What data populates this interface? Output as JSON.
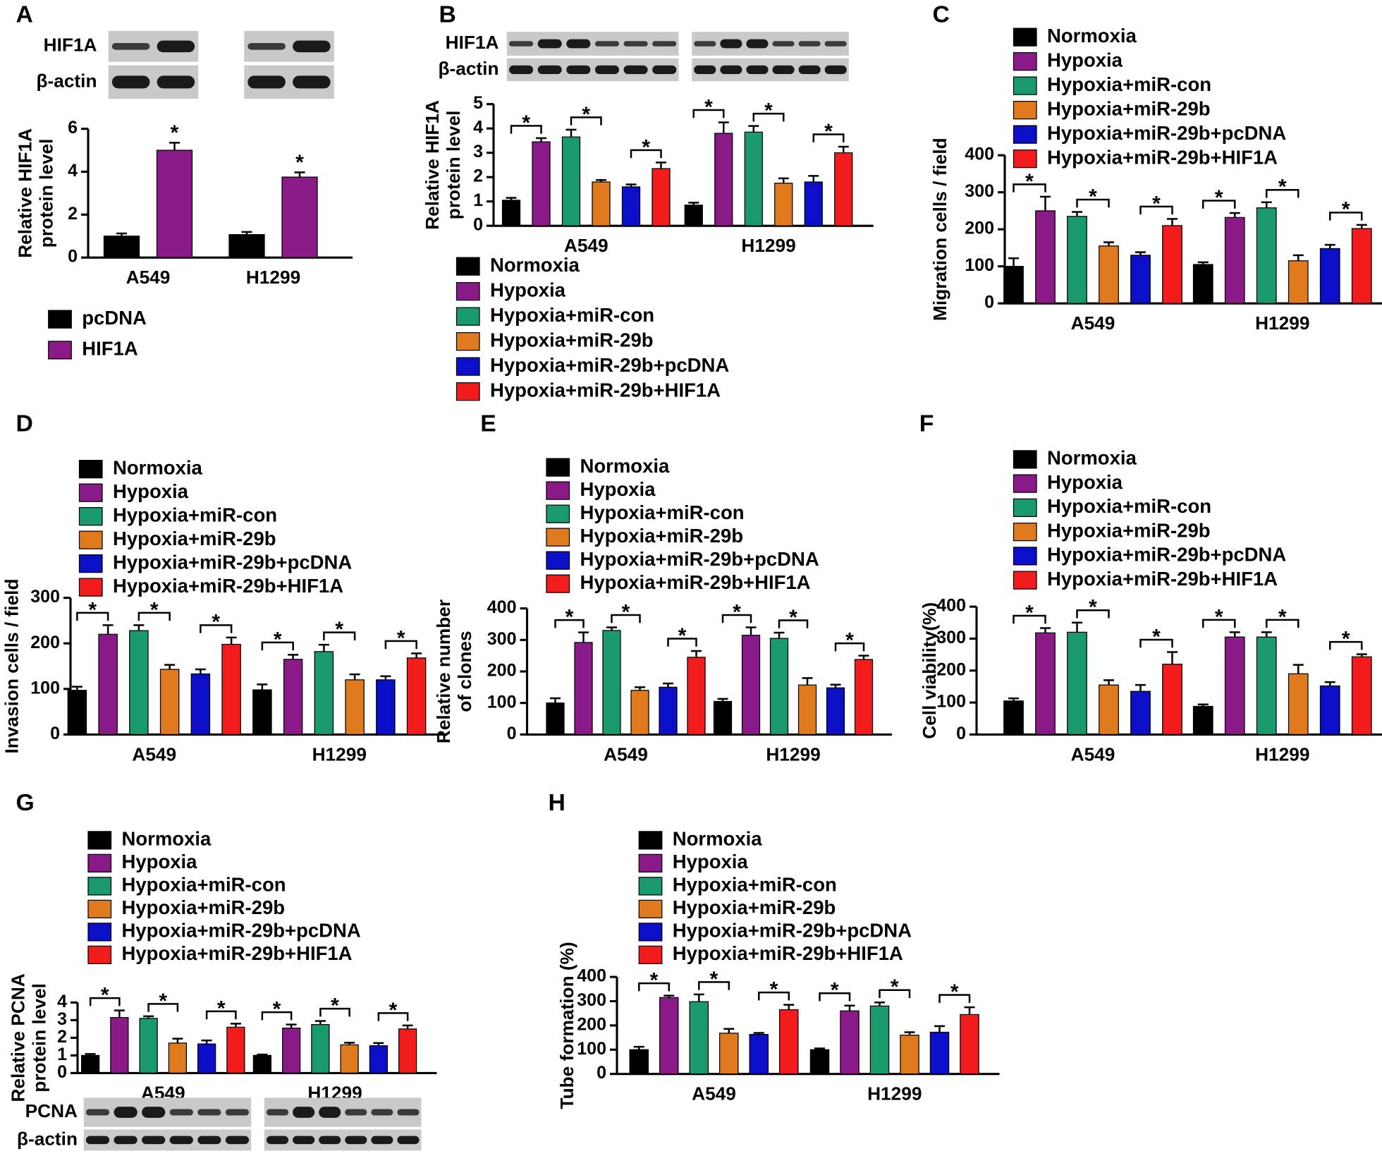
{
  "chart_data": [
    {
      "type": "bar",
      "panel": "A",
      "ylabel": [
        "Relative HIF1A",
        "protein level"
      ],
      "categories": [
        "A549",
        "H1299"
      ],
      "ylim": [
        0,
        6
      ],
      "yticks": [
        0,
        2,
        4,
        6
      ],
      "brackets": false,
      "blot": {
        "labels": [
          "HIF1A",
          "β-actin"
        ],
        "lanes": 2
      },
      "series": [
        {
          "name": "pcDNA",
          "color": "#000000",
          "values": [
            1.0,
            1.07
          ],
          "errors": [
            0.12,
            0.12
          ]
        },
        {
          "name": "HIF1A",
          "color": "#8b1a89",
          "values": [
            5.0,
            3.75
          ],
          "errors": [
            0.35,
            0.22
          ],
          "significance": [
            "*",
            "*"
          ]
        }
      ]
    },
    {
      "type": "bar",
      "panel": "B",
      "ylabel": [
        "Relative HIF1A",
        "protein level"
      ],
      "categories": [
        "A549",
        "H1299"
      ],
      "ylim": [
        0,
        5
      ],
      "yticks": [
        0,
        1,
        2,
        3,
        4,
        5
      ],
      "brackets": true,
      "blot": {
        "labels": [
          "HIF1A",
          "β-actin"
        ],
        "lanes": 6
      },
      "series": [
        {
          "name": "Normoxia",
          "color": "#000000",
          "values": [
            1.05,
            0.85
          ],
          "errors": [
            0.1,
            0.1
          ]
        },
        {
          "name": "Hypoxia",
          "color": "#8b1a89",
          "values": [
            3.45,
            3.8
          ],
          "errors": [
            0.15,
            0.45
          ],
          "significance": [
            "*",
            "*"
          ]
        },
        {
          "name": "Hypoxia+miR-con",
          "color": "#1a9a6c",
          "values": [
            3.65,
            3.85
          ],
          "errors": [
            0.3,
            0.25
          ]
        },
        {
          "name": "Hypoxia+miR-29b",
          "color": "#e07a1f",
          "values": [
            1.8,
            1.75
          ],
          "errors": [
            0.08,
            0.2
          ],
          "significance": [
            "*",
            "*"
          ]
        },
        {
          "name": "Hypoxia+miR-29b+pcDNA",
          "color": "#0b10c8",
          "values": [
            1.6,
            1.8
          ],
          "errors": [
            0.1,
            0.25
          ]
        },
        {
          "name": "Hypoxia+miR-29b+HIF1A",
          "color": "#f21c1c",
          "values": [
            2.35,
            3.0
          ],
          "errors": [
            0.25,
            0.25
          ],
          "significance": [
            "*",
            "*"
          ]
        }
      ]
    },
    {
      "type": "bar",
      "panel": "C",
      "ylabel": [
        "Migration cells / field"
      ],
      "categories": [
        "A549",
        "H1299"
      ],
      "ylim": [
        0,
        400
      ],
      "yticks": [
        0,
        100,
        200,
        300,
        400
      ],
      "brackets": true,
      "series": [
        {
          "name": "Normoxia",
          "color": "#000000",
          "values": [
            100,
            105
          ],
          "errors": [
            22,
            6
          ]
        },
        {
          "name": "Hypoxia",
          "color": "#8b1a89",
          "values": [
            250,
            232
          ],
          "errors": [
            38,
            12
          ],
          "significance": [
            "*",
            "*"
          ]
        },
        {
          "name": "Hypoxia+miR-con",
          "color": "#1a9a6c",
          "values": [
            235,
            258
          ],
          "errors": [
            12,
            15
          ]
        },
        {
          "name": "Hypoxia+miR-29b",
          "color": "#e07a1f",
          "values": [
            155,
            115
          ],
          "errors": [
            10,
            15
          ],
          "significance": [
            "*",
            "*"
          ]
        },
        {
          "name": "Hypoxia+miR-29b+pcDNA",
          "color": "#0b10c8",
          "values": [
            130,
            148
          ],
          "errors": [
            8,
            10
          ]
        },
        {
          "name": "Hypoxia+miR-29b+HIF1A",
          "color": "#f21c1c",
          "values": [
            210,
            202
          ],
          "errors": [
            18,
            10
          ],
          "significance": [
            "*",
            "*"
          ]
        }
      ]
    },
    {
      "type": "bar",
      "panel": "D",
      "ylabel": [
        "Invasion cells / field"
      ],
      "categories": [
        "A549",
        "H1299"
      ],
      "ylim": [
        0,
        300
      ],
      "yticks": [
        0,
        100,
        200,
        300
      ],
      "brackets": true,
      "series": [
        {
          "name": "Normoxia",
          "color": "#000000",
          "values": [
            97,
            98
          ],
          "errors": [
            8,
            12
          ]
        },
        {
          "name": "Hypoxia",
          "color": "#8b1a89",
          "values": [
            220,
            165
          ],
          "errors": [
            20,
            10
          ],
          "significance": [
            "*",
            "*"
          ]
        },
        {
          "name": "Hypoxia+miR-con",
          "color": "#1a9a6c",
          "values": [
            228,
            182
          ],
          "errors": [
            12,
            15
          ]
        },
        {
          "name": "Hypoxia+miR-29b",
          "color": "#e07a1f",
          "values": [
            143,
            120
          ],
          "errors": [
            10,
            12
          ],
          "significance": [
            "*",
            "*"
          ]
        },
        {
          "name": "Hypoxia+miR-29b+pcDNA",
          "color": "#0b10c8",
          "values": [
            133,
            120
          ],
          "errors": [
            10,
            8
          ]
        },
        {
          "name": "Hypoxia+miR-29b+HIF1A",
          "color": "#f21c1c",
          "values": [
            198,
            168
          ],
          "errors": [
            15,
            10
          ],
          "significance": [
            "*",
            "*"
          ]
        }
      ]
    },
    {
      "type": "bar",
      "panel": "E",
      "ylabel": [
        "Relative number",
        "of clones"
      ],
      "categories": [
        "A549",
        "H1299"
      ],
      "ylim": [
        0,
        400
      ],
      "yticks": [
        0,
        100,
        200,
        300,
        400
      ],
      "brackets": true,
      "series": [
        {
          "name": "Normoxia",
          "color": "#000000",
          "values": [
            100,
            105
          ],
          "errors": [
            15,
            8
          ]
        },
        {
          "name": "Hypoxia",
          "color": "#8b1a89",
          "values": [
            292,
            315
          ],
          "errors": [
            32,
            25
          ],
          "significance": [
            "*",
            "*"
          ]
        },
        {
          "name": "Hypoxia+miR-con",
          "color": "#1a9a6c",
          "values": [
            330,
            305
          ],
          "errors": [
            10,
            18
          ]
        },
        {
          "name": "Hypoxia+miR-29b",
          "color": "#e07a1f",
          "values": [
            140,
            157
          ],
          "errors": [
            10,
            22
          ],
          "significance": [
            "*",
            "*"
          ]
        },
        {
          "name": "Hypoxia+miR-29b+pcDNA",
          "color": "#0b10c8",
          "values": [
            150,
            148
          ],
          "errors": [
            12,
            10
          ]
        },
        {
          "name": "Hypoxia+miR-29b+HIF1A",
          "color": "#f21c1c",
          "values": [
            245,
            238
          ],
          "errors": [
            20,
            12
          ],
          "significance": [
            "*",
            "*"
          ]
        }
      ]
    },
    {
      "type": "bar",
      "panel": "F",
      "ylabel": [
        "Cell viability(%)"
      ],
      "categories": [
        "A549",
        "H1299"
      ],
      "ylim": [
        0,
        400
      ],
      "yticks": [
        0,
        100,
        200,
        300,
        400
      ],
      "brackets": true,
      "series": [
        {
          "name": "Normoxia",
          "color": "#000000",
          "values": [
            105,
            88
          ],
          "errors": [
            8,
            6
          ]
        },
        {
          "name": "Hypoxia",
          "color": "#8b1a89",
          "values": [
            318,
            305
          ],
          "errors": [
            15,
            15
          ],
          "significance": [
            "*",
            "*"
          ]
        },
        {
          "name": "Hypoxia+miR-con",
          "color": "#1a9a6c",
          "values": [
            320,
            305
          ],
          "errors": [
            30,
            15
          ]
        },
        {
          "name": "Hypoxia+miR-29b",
          "color": "#e07a1f",
          "values": [
            155,
            190
          ],
          "errors": [
            15,
            28
          ],
          "significance": [
            "*",
            "*"
          ]
        },
        {
          "name": "Hypoxia+miR-29b+pcDNA",
          "color": "#0b10c8",
          "values": [
            135,
            152
          ],
          "errors": [
            20,
            12
          ]
        },
        {
          "name": "Hypoxia+miR-29b+HIF1A",
          "color": "#f21c1c",
          "values": [
            220,
            243
          ],
          "errors": [
            38,
            8
          ],
          "significance": [
            "*",
            "*"
          ]
        }
      ]
    },
    {
      "type": "bar",
      "panel": "G",
      "ylabel": [
        "Relative PCNA",
        "protein level"
      ],
      "categories": [
        "A549",
        "H1299"
      ],
      "ylim": [
        0,
        4
      ],
      "yticks": [
        0,
        1,
        2,
        3,
        4
      ],
      "brackets": true,
      "blot": {
        "labels": [
          "PCNA",
          "β-actin"
        ],
        "lanes": 6
      },
      "series": [
        {
          "name": "Normoxia",
          "color": "#000000",
          "values": [
            1.0,
            1.0
          ],
          "errors": [
            0.08,
            0.05
          ]
        },
        {
          "name": "Hypoxia",
          "color": "#8b1a89",
          "values": [
            3.15,
            2.55
          ],
          "errors": [
            0.4,
            0.2
          ],
          "significance": [
            "*",
            "*"
          ]
        },
        {
          "name": "Hypoxia+miR-con",
          "color": "#1a9a6c",
          "values": [
            3.1,
            2.75
          ],
          "errors": [
            0.12,
            0.2
          ]
        },
        {
          "name": "Hypoxia+miR-29b",
          "color": "#e07a1f",
          "values": [
            1.7,
            1.6
          ],
          "errors": [
            0.25,
            0.12
          ],
          "significance": [
            "*",
            "*"
          ]
        },
        {
          "name": "Hypoxia+miR-29b+pcDNA",
          "color": "#0b10c8",
          "values": [
            1.65,
            1.55
          ],
          "errors": [
            0.2,
            0.15
          ]
        },
        {
          "name": "Hypoxia+miR-29b+HIF1A",
          "color": "#f21c1c",
          "values": [
            2.6,
            2.5
          ],
          "errors": [
            0.2,
            0.2
          ],
          "significance": [
            "*",
            "*"
          ]
        }
      ]
    },
    {
      "type": "bar",
      "panel": "H",
      "ylabel": [
        "Tube formation (%)"
      ],
      "categories": [
        "A549",
        "H1299"
      ],
      "ylim": [
        0,
        400
      ],
      "yticks": [
        0,
        100,
        200,
        300,
        400
      ],
      "brackets": true,
      "series": [
        {
          "name": "Normoxia",
          "color": "#000000",
          "values": [
            100,
            100
          ],
          "errors": [
            12,
            5
          ]
        },
        {
          "name": "Hypoxia",
          "color": "#8b1a89",
          "values": [
            315,
            260
          ],
          "errors": [
            8,
            22
          ],
          "significance": [
            "*",
            "*"
          ]
        },
        {
          "name": "Hypoxia+miR-con",
          "color": "#1a9a6c",
          "values": [
            298,
            280
          ],
          "errors": [
            30,
            15
          ]
        },
        {
          "name": "Hypoxia+miR-29b",
          "color": "#e07a1f",
          "values": [
            168,
            160
          ],
          "errors": [
            18,
            12
          ],
          "significance": [
            "*",
            "*"
          ]
        },
        {
          "name": "Hypoxia+miR-29b+pcDNA",
          "color": "#0b10c8",
          "values": [
            163,
            172
          ],
          "errors": [
            6,
            25
          ]
        },
        {
          "name": "Hypoxia+miR-29b+HIF1A",
          "color": "#f21c1c",
          "values": [
            265,
            245
          ],
          "errors": [
            20,
            30
          ],
          "significance": [
            "*",
            "*"
          ]
        }
      ]
    }
  ]
}
